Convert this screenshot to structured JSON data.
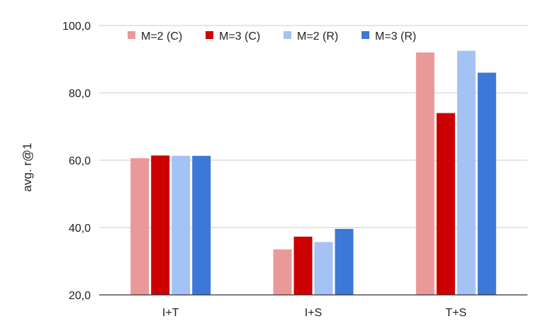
{
  "chart_data": {
    "type": "bar",
    "title": "",
    "xlabel": "",
    "ylabel": "avg. r@1",
    "ylim": [
      20,
      100
    ],
    "yticks": [
      20,
      40,
      60,
      80,
      100
    ],
    "ytick_labels": [
      "20,0",
      "40,0",
      "60,0",
      "80,0",
      "100,0"
    ],
    "grid": true,
    "legend_position": "top",
    "categories": [
      "I+T",
      "I+S",
      "T+S"
    ],
    "series": [
      {
        "name": "M=2 (C)",
        "color": "#ea9999",
        "values": [
          60.6,
          33.5,
          92.0
        ]
      },
      {
        "name": "M=3 (C)",
        "color": "#cc0000",
        "values": [
          61.4,
          37.3,
          74.0
        ]
      },
      {
        "name": "M=2 (R)",
        "color": "#a4c2f4",
        "values": [
          61.3,
          35.7,
          92.5
        ]
      },
      {
        "name": "M=3 (R)",
        "color": "#3c78d8",
        "values": [
          61.3,
          39.6,
          86.0
        ]
      }
    ]
  }
}
